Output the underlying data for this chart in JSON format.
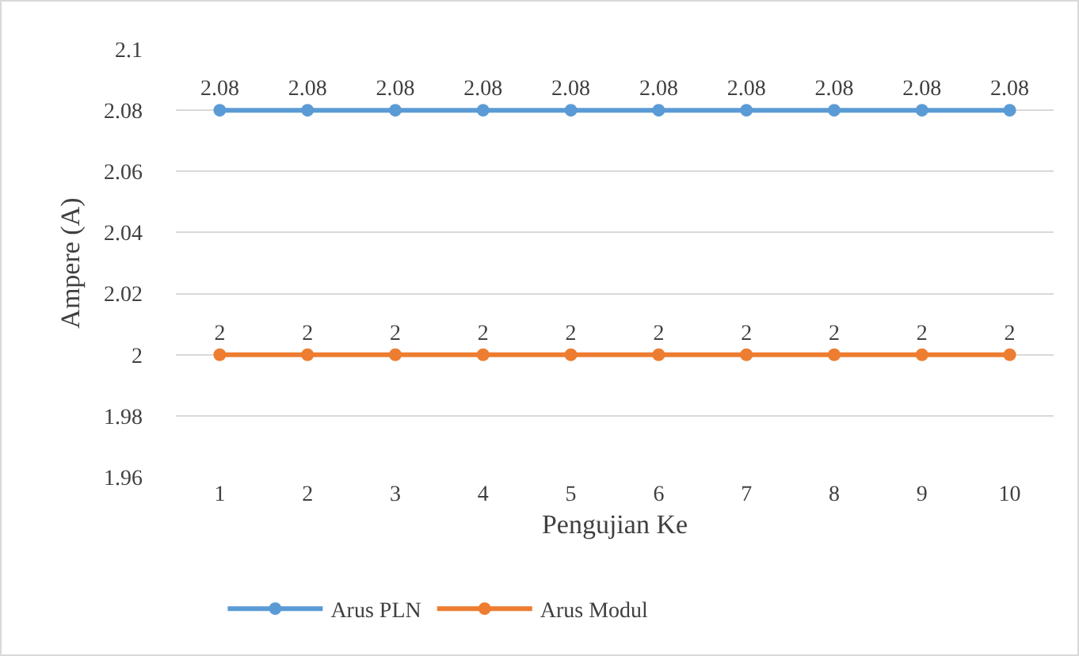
{
  "chart_data": {
    "type": "line",
    "xlabel": "Pengujian Ke",
    "ylabel": "Ampere (A)",
    "categories": [
      "1",
      "2",
      "3",
      "4",
      "5",
      "6",
      "7",
      "8",
      "9",
      "10"
    ],
    "series": [
      {
        "name": "Arus PLN",
        "color": "#5b9bd5",
        "values": [
          2.08,
          2.08,
          2.08,
          2.08,
          2.08,
          2.08,
          2.08,
          2.08,
          2.08,
          2.08
        ]
      },
      {
        "name": "Arus Modul",
        "color": "#ed7d31",
        "values": [
          2,
          2,
          2,
          2,
          2,
          2,
          2,
          2,
          2,
          2
        ]
      }
    ],
    "ylim": [
      1.96,
      2.1
    ],
    "yticks": [
      1.96,
      1.98,
      2,
      2.02,
      2.04,
      2.06,
      2.08,
      2.1
    ],
    "grid": "y",
    "legend": "bottom",
    "marker": "circle",
    "line_style": "solid",
    "data_labels": true
  }
}
